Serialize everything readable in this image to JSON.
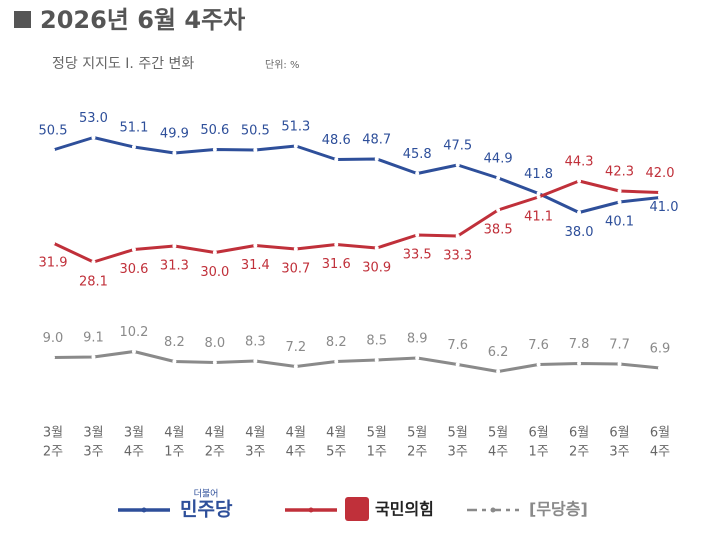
{
  "chart_data": {
    "type": "line",
    "title": "2026년 6월 4주차",
    "subtitle": "정당 지지도 Ⅰ. 주간 변화",
    "unit": "단위: %",
    "categories": [
      [
        "3월",
        "2주"
      ],
      [
        "3월",
        "3주"
      ],
      [
        "3월",
        "4주"
      ],
      [
        "4월",
        "1주"
      ],
      [
        "4월",
        "2주"
      ],
      [
        "4월",
        "3주"
      ],
      [
        "4월",
        "4주"
      ],
      [
        "4월",
        "5주"
      ],
      [
        "5월",
        "1주"
      ],
      [
        "5월",
        "2주"
      ],
      [
        "5월",
        "3주"
      ],
      [
        "5월",
        "4주"
      ],
      [
        "6월",
        "1주"
      ],
      [
        "6월",
        "2주"
      ],
      [
        "6월",
        "3주"
      ],
      [
        "6월",
        "4주"
      ]
    ],
    "series": [
      {
        "name": "민주당",
        "prefix": "더불어",
        "color": "#2e4f9a",
        "values": [
          50.5,
          53.0,
          51.1,
          49.9,
          50.6,
          50.5,
          51.3,
          48.6,
          48.7,
          45.8,
          47.5,
          44.9,
          41.8,
          38.0,
          40.1,
          41.0
        ],
        "value_labels": [
          "50.5",
          "53.0",
          "51.1",
          "49.9",
          "50.6",
          "50.5",
          "51.3",
          "48.6",
          "48.7",
          "45.8",
          "47.5",
          "44.9",
          "41.8",
          "38.0",
          "40.1",
          "41.0"
        ]
      },
      {
        "name": "국민의힘",
        "color": "#c0303a",
        "values": [
          31.9,
          28.1,
          30.6,
          31.3,
          30.0,
          31.4,
          30.7,
          31.6,
          30.9,
          33.5,
          33.3,
          38.5,
          41.1,
          44.3,
          42.3,
          42.0
        ],
        "value_labels": [
          "31.9",
          "28.1",
          "30.6",
          "31.3",
          "30.0",
          "31.4",
          "30.7",
          "31.6",
          "30.9",
          "33.5",
          "33.3",
          "38.5",
          "41.1",
          "44.3",
          "42.3",
          "42.0"
        ]
      },
      {
        "name": "[무당층]",
        "color": "#8a8a8a",
        "values": [
          9.0,
          9.1,
          10.2,
          8.2,
          8.0,
          8.3,
          7.2,
          8.2,
          8.5,
          8.9,
          7.6,
          6.2,
          7.6,
          7.8,
          7.7,
          6.9
        ],
        "value_labels": [
          "9.0",
          "9.1",
          "10.2",
          "8.2",
          "8.0",
          "8.3",
          "7.2",
          "8.2",
          "8.5",
          "8.9",
          "7.6",
          "6.2",
          "7.6",
          "7.8",
          "7.7",
          "6.9"
        ]
      }
    ]
  }
}
